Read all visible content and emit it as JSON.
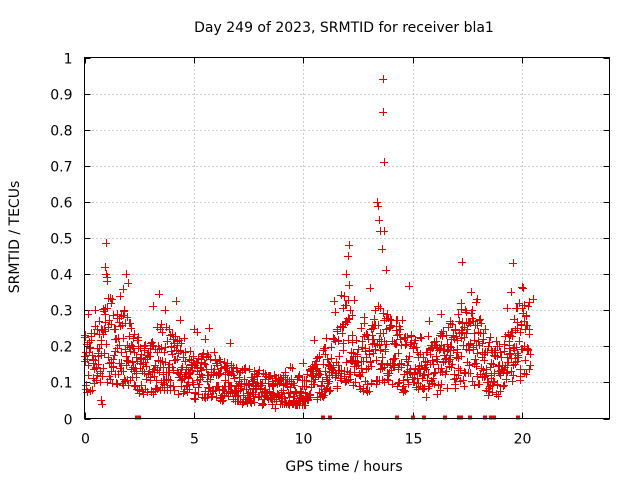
{
  "chart_data": {
    "type": "scatter",
    "title": "Day 249 of 2023, SRMTID for receiver bla1",
    "xlabel": "GPS time / hours",
    "ylabel": "SRMTID / TECUs",
    "xlim": [
      0,
      24
    ],
    "ylim": [
      0,
      1
    ],
    "x_ticks": [
      0,
      5,
      10,
      15,
      20
    ],
    "x_tick_labels": [
      "0",
      "5",
      "10",
      "15",
      "20"
    ],
    "y_ticks": [
      0,
      0.1,
      0.2,
      0.3,
      0.4,
      0.5,
      0.6,
      0.7,
      0.8,
      0.9,
      1
    ],
    "y_tick_labels": [
      "0",
      "0.1",
      "0.2",
      "0.3",
      "0.4",
      "0.5",
      "0.6",
      "0.7",
      "0.8",
      "0.9",
      "1"
    ],
    "grid": true,
    "marker": "+",
    "color": "#e00000",
    "series": [
      {
        "name": "SRMTID",
        "profile": [
          [
            0.0,
            0.15
          ],
          [
            0.5,
            0.17
          ],
          [
            1.0,
            0.22
          ],
          [
            1.5,
            0.21
          ],
          [
            2.0,
            0.19
          ],
          [
            2.5,
            0.15
          ],
          [
            3.0,
            0.14
          ],
          [
            3.5,
            0.17
          ],
          [
            4.0,
            0.16
          ],
          [
            4.5,
            0.13
          ],
          [
            5.0,
            0.12
          ],
          [
            5.5,
            0.12
          ],
          [
            6.0,
            0.11
          ],
          [
            6.5,
            0.1
          ],
          [
            7.0,
            0.09
          ],
          [
            7.5,
            0.09
          ],
          [
            8.0,
            0.08
          ],
          [
            8.5,
            0.08
          ],
          [
            9.0,
            0.075
          ],
          [
            9.5,
            0.075
          ],
          [
            10.0,
            0.08
          ],
          [
            10.5,
            0.1
          ],
          [
            11.0,
            0.13
          ],
          [
            11.5,
            0.16
          ],
          [
            12.0,
            0.22
          ],
          [
            12.5,
            0.17
          ],
          [
            13.0,
            0.16
          ],
          [
            13.5,
            0.22
          ],
          [
            14.0,
            0.2
          ],
          [
            14.5,
            0.16
          ],
          [
            15.0,
            0.15
          ],
          [
            15.5,
            0.13
          ],
          [
            16.0,
            0.14
          ],
          [
            16.5,
            0.17
          ],
          [
            17.0,
            0.18
          ],
          [
            17.5,
            0.2
          ],
          [
            18.0,
            0.19
          ],
          [
            18.5,
            0.14
          ],
          [
            19.0,
            0.13
          ],
          [
            19.5,
            0.17
          ],
          [
            20.0,
            0.24
          ],
          [
            20.4,
            0.2
          ]
        ],
        "outliers": [
          [
            13.65,
            0.94
          ],
          [
            13.63,
            0.85
          ],
          [
            13.7,
            0.71
          ],
          [
            13.35,
            0.6
          ],
          [
            13.4,
            0.59
          ],
          [
            13.45,
            0.55
          ],
          [
            13.5,
            0.52
          ],
          [
            13.7,
            0.52
          ],
          [
            13.6,
            0.47
          ],
          [
            13.8,
            0.41
          ],
          [
            12.1,
            0.48
          ],
          [
            12.05,
            0.45
          ],
          [
            11.95,
            0.4
          ],
          [
            12.1,
            0.37
          ],
          [
            0.95,
            0.42
          ],
          [
            1.0,
            0.4
          ],
          [
            1.05,
            0.38
          ],
          [
            1.9,
            0.4
          ],
          [
            1.75,
            0.36
          ],
          [
            1.6,
            0.34
          ],
          [
            3.7,
            0.3
          ],
          [
            19.6,
            0.43
          ],
          [
            19.5,
            0.35
          ],
          [
            20.5,
            0.33
          ],
          [
            17.95,
            0.33
          ],
          [
            17.2,
            0.32
          ],
          [
            16.3,
            0.29
          ],
          [
            0.75,
            0.05
          ],
          [
            0.8,
            0.04
          ],
          [
            8.7,
            0.03
          ]
        ],
        "zero_ticks": [
          2.4,
          2.5,
          10.9,
          11.2,
          14.3,
          15.0,
          15.5,
          16.5,
          17.1,
          17.2,
          17.6,
          18.3,
          18.6,
          18.7,
          19.8
        ]
      }
    ]
  }
}
